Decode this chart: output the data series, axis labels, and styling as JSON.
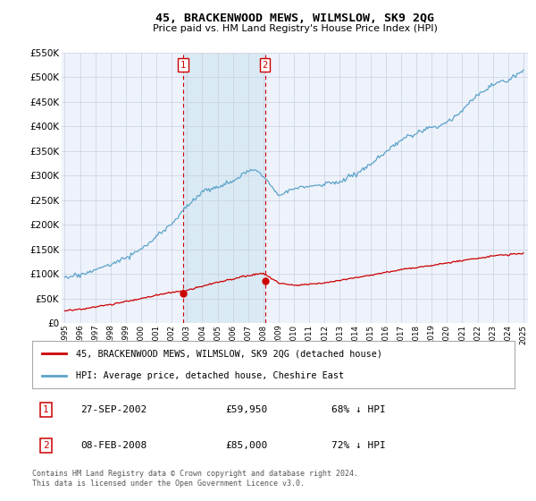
{
  "title": "45, BRACKENWOOD MEWS, WILMSLOW, SK9 2QG",
  "subtitle": "Price paid vs. HM Land Registry's House Price Index (HPI)",
  "legend_line1": "45, BRACKENWOOD MEWS, WILMSLOW, SK9 2QG (detached house)",
  "legend_line2": "HPI: Average price, detached house, Cheshire East",
  "footnote1": "Contains HM Land Registry data © Crown copyright and database right 2024.",
  "footnote2": "This data is licensed under the Open Government Licence v3.0.",
  "sale1_label": "1",
  "sale1_date": "27-SEP-2002",
  "sale1_price": "£59,950",
  "sale1_hpi": "68% ↓ HPI",
  "sale2_label": "2",
  "sale2_date": "08-FEB-2008",
  "sale2_price": "£85,000",
  "sale2_hpi": "72% ↓ HPI",
  "sale1_x": 2002.75,
  "sale1_y": 59950,
  "sale2_x": 2008.1,
  "sale2_y": 85000,
  "ylim": [
    0,
    550000
  ],
  "xlim": [
    1994.8,
    2025.3
  ],
  "hpi_color": "#5ba3c9",
  "price_color": "#cc0000",
  "shade_color": "#daeaf5",
  "background_color": "#ffffff",
  "plot_bg_color": "#eef2fb"
}
